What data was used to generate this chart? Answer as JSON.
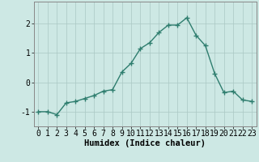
{
  "x": [
    0,
    1,
    2,
    3,
    4,
    5,
    6,
    7,
    8,
    9,
    10,
    11,
    12,
    13,
    14,
    15,
    16,
    17,
    18,
    19,
    20,
    21,
    22,
    23
  ],
  "y": [
    -1.0,
    -1.0,
    -1.1,
    -0.7,
    -0.65,
    -0.55,
    -0.45,
    -0.3,
    -0.25,
    0.35,
    0.65,
    1.15,
    1.35,
    1.7,
    1.95,
    1.95,
    2.2,
    1.6,
    1.25,
    0.3,
    -0.35,
    -0.3,
    -0.6,
    -0.65
  ],
  "xlabel": "Humidex (Indice chaleur)",
  "line_color": "#2e7d6e",
  "marker_color": "#2e7d6e",
  "bg_color": "#cde8e4",
  "grid_color": "#aac8c4",
  "ylim": [
    -1.5,
    2.75
  ],
  "xlim": [
    -0.5,
    23.5
  ],
  "yticks": [
    -1,
    0,
    1,
    2
  ],
  "xticks": [
    0,
    1,
    2,
    3,
    4,
    5,
    6,
    7,
    8,
    9,
    10,
    11,
    12,
    13,
    14,
    15,
    16,
    17,
    18,
    19,
    20,
    21,
    22,
    23
  ],
  "xlabel_fontsize": 7.5,
  "tick_fontsize": 7,
  "linewidth": 1.0,
  "markersize": 4
}
